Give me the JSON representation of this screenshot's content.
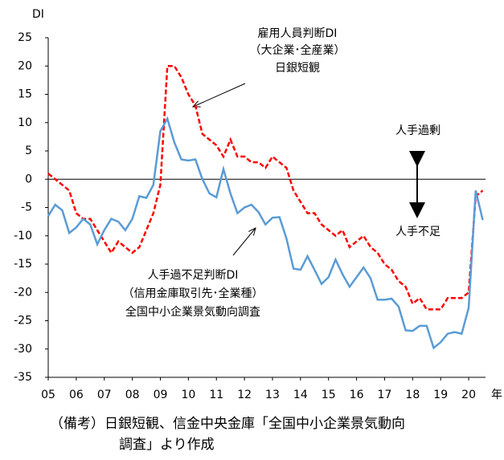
{
  "chart_data": {
    "type": "line",
    "y_label": "DI",
    "x_unit": "年",
    "x": [
      2005,
      2005.25,
      2005.5,
      2005.75,
      2006,
      2006.25,
      2006.5,
      2006.75,
      2007,
      2007.25,
      2007.5,
      2007.75,
      2008,
      2008.25,
      2008.5,
      2008.75,
      2009,
      2009.25,
      2009.5,
      2009.75,
      2010,
      2010.25,
      2010.5,
      2010.75,
      2011,
      2011.25,
      2011.5,
      2011.75,
      2012,
      2012.25,
      2012.5,
      2012.75,
      2013,
      2013.25,
      2013.5,
      2013.75,
      2014,
      2014.25,
      2014.5,
      2014.75,
      2015,
      2015.25,
      2015.5,
      2015.75,
      2016,
      2016.25,
      2016.5,
      2016.75,
      2017,
      2017.25,
      2017.5,
      2017.75,
      2018,
      2018.25,
      2018.5,
      2018.75,
      2019,
      2019.25,
      2019.5,
      2019.75,
      2020,
      2020.25,
      2020.5
    ],
    "series": [
      {
        "name": "雇用人員判断DI",
        "color": "#ff0000",
        "dashed": true,
        "values": [
          1,
          0,
          -1,
          -2,
          -6,
          -7,
          -7,
          -9,
          -11,
          -13,
          -11,
          -12,
          -13,
          -12,
          -9,
          -6,
          -1,
          20,
          20,
          18,
          15,
          13,
          8,
          7,
          6,
          4,
          7,
          4,
          4,
          3,
          3,
          2,
          4,
          3,
          2,
          -2,
          -4,
          -6,
          -6,
          -8,
          -9,
          -10,
          -9,
          -12,
          -11,
          -10,
          -12,
          -13,
          -15,
          -16,
          -18,
          -19,
          -22,
          -21,
          -23,
          -23,
          -23,
          -21,
          -21,
          -21,
          -20,
          -3,
          -2
        ]
      },
      {
        "name": "人手過不足判断DI",
        "color": "#5b9bd5",
        "dashed": false,
        "values": [
          -6.5,
          -4.5,
          -5.5,
          -9.5,
          -8.5,
          -7,
          -8,
          -11.5,
          -9,
          -7,
          -7.5,
          -9,
          -7,
          -3,
          -3.3,
          -1,
          8.5,
          10.7,
          6.5,
          3.5,
          3.3,
          3.5,
          0,
          -2.5,
          -3.2,
          1.8,
          -2.5,
          -6,
          -5,
          -4.5,
          -5.8,
          -8,
          -6.8,
          -6.7,
          -10.5,
          -15.8,
          -16,
          -13.6,
          -16,
          -18.5,
          -17.3,
          -14.2,
          -16.8,
          -19,
          -17.3,
          -15.6,
          -17.5,
          -21.3,
          -21.3,
          -21.1,
          -22.5,
          -26.7,
          -26.8,
          -25.9,
          -25.9,
          -29.8,
          -28.8,
          -27.3,
          -27,
          -27.3,
          -22.7,
          -2,
          -7.2
        ]
      }
    ],
    "xlim": [
      2005,
      2020.6
    ],
    "xticks": [
      {
        "value": 2005,
        "label": "05"
      },
      {
        "value": 2006,
        "label": "06"
      },
      {
        "value": 2007,
        "label": "07"
      },
      {
        "value": 2008,
        "label": "08"
      },
      {
        "value": 2009,
        "label": "09"
      },
      {
        "value": 2010,
        "label": "10"
      },
      {
        "value": 2011,
        "label": "11"
      },
      {
        "value": 2012,
        "label": "12"
      },
      {
        "value": 2013,
        "label": "13"
      },
      {
        "value": 2014,
        "label": "14"
      },
      {
        "value": 2015,
        "label": "15"
      },
      {
        "value": 2016,
        "label": "16"
      },
      {
        "value": 2017,
        "label": "17"
      },
      {
        "value": 2018,
        "label": "18"
      },
      {
        "value": 2019,
        "label": "19"
      },
      {
        "value": 2020,
        "label": "20"
      }
    ],
    "ylim": [
      -35,
      25
    ],
    "yticks": [
      -35,
      -30,
      -25,
      -20,
      -15,
      -10,
      -5,
      0,
      5,
      10,
      15,
      20,
      25
    ],
    "annotations": {
      "tankan": [
        "雇用人員判断DI",
        "（大企業･全産業）",
        "日銀短観"
      ],
      "surplus": "人手過剰",
      "shortage": "人手不足",
      "shinkin": [
        "人手過不足判断DI",
        "（信用金庫取引先･全業種）",
        "全国中小企業景気動向調査"
      ]
    },
    "note": [
      "（備考）日銀短観、信金中央金庫「全国中小企業景気動向",
      "調査」より作成"
    ]
  }
}
